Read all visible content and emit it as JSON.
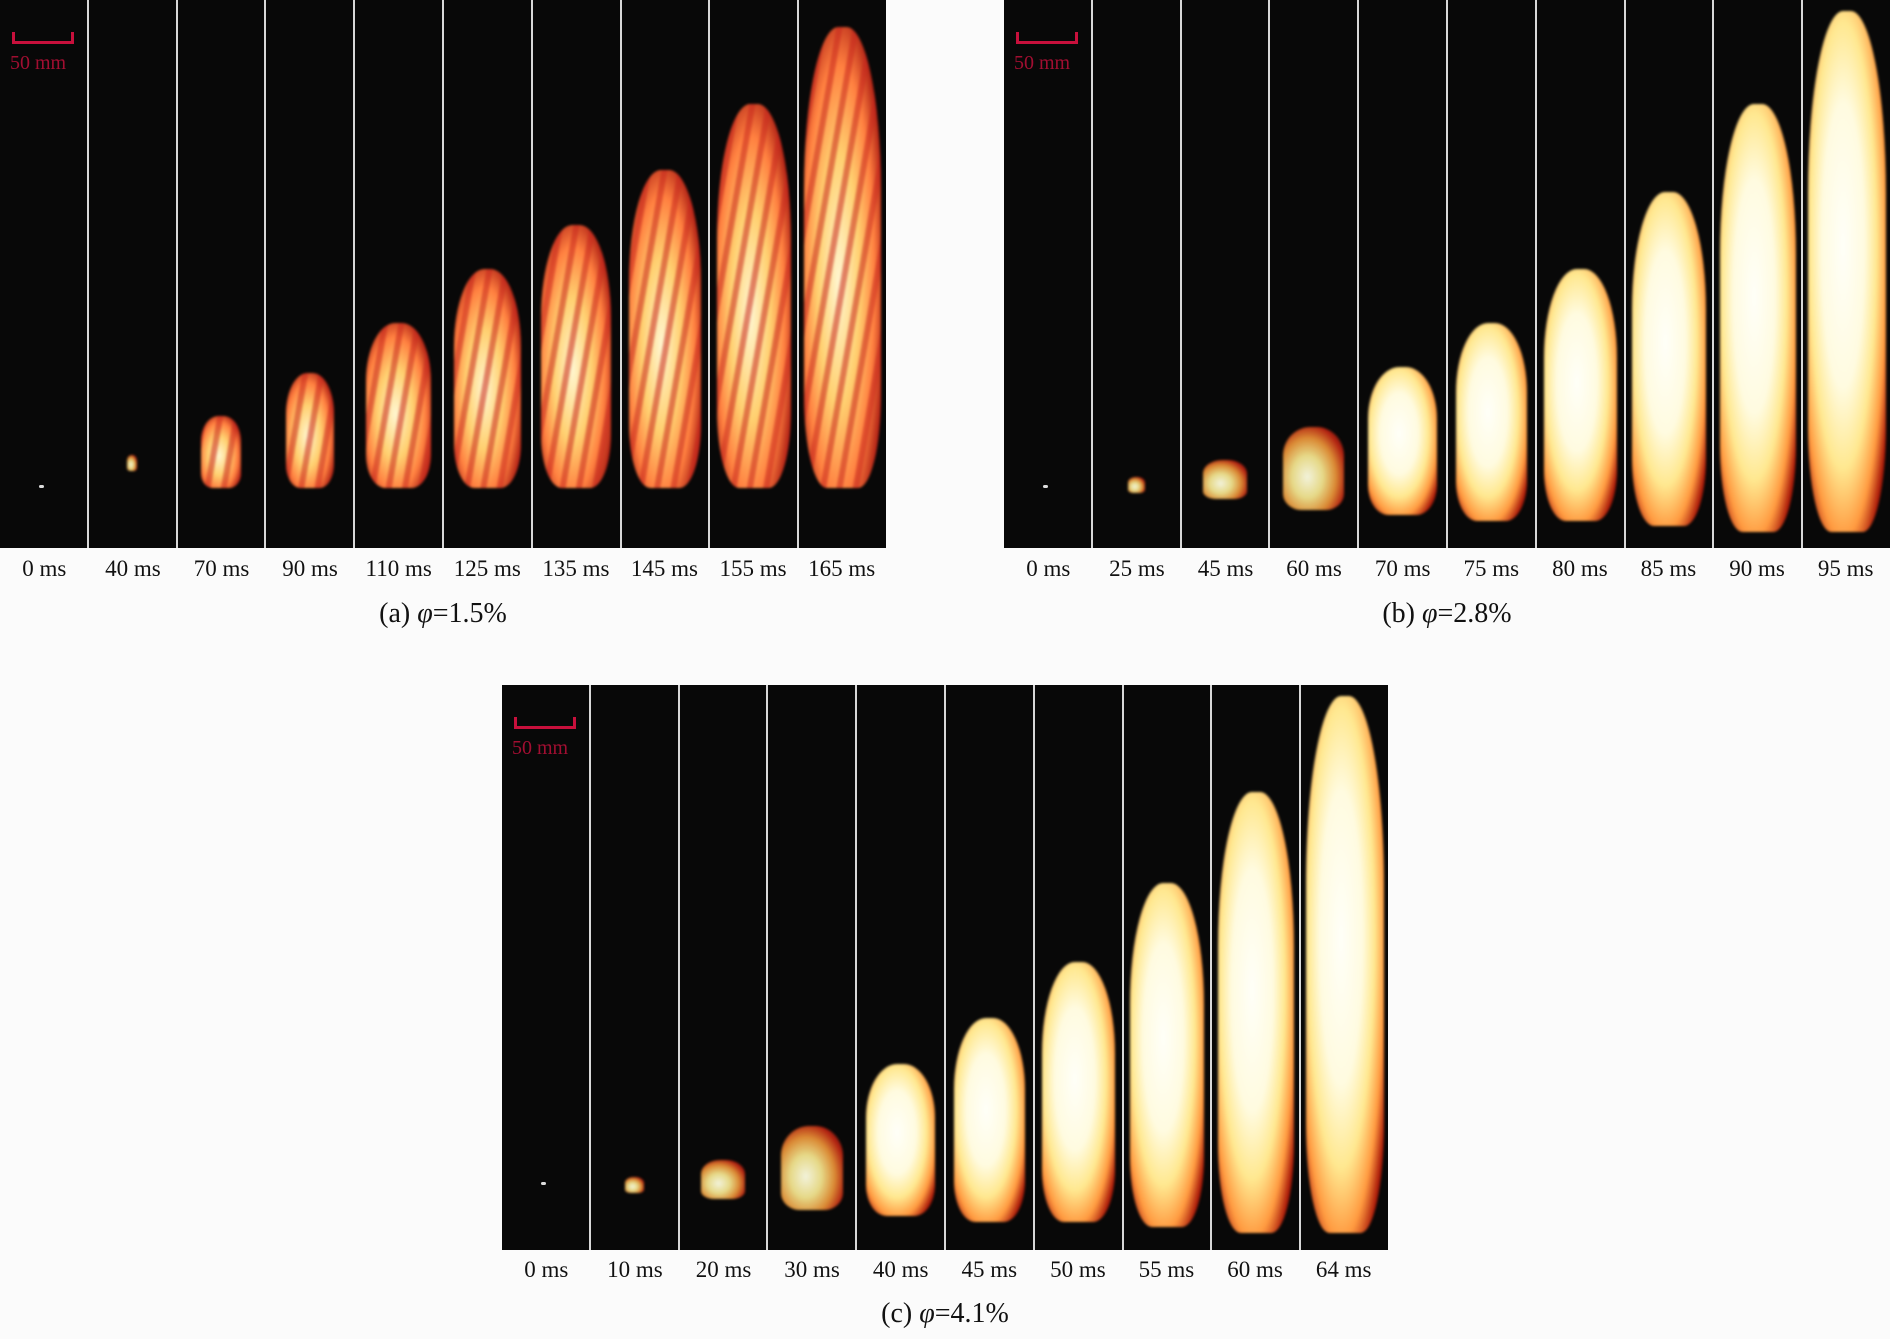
{
  "figure": {
    "panels": [
      {
        "id": "a",
        "caption_prefix": "(a) ",
        "caption_symbol": "φ",
        "caption_value": "=1.5%",
        "scale_bar_label": "50 mm",
        "frame_labels": [
          "0 ms",
          "40 ms",
          "70 ms",
          "90 ms",
          "110 ms",
          "125 ms",
          "135 ms",
          "145 ms",
          "155 ms",
          "165 ms"
        ]
      },
      {
        "id": "b",
        "caption_prefix": "(b) ",
        "caption_symbol": "φ",
        "caption_value": "=2.8%",
        "scale_bar_label": "50 mm",
        "frame_labels": [
          "0 ms",
          "25 ms",
          "45 ms",
          "60 ms",
          "70 ms",
          "75 ms",
          "80 ms",
          "85 ms",
          "90 ms",
          "95 ms"
        ]
      },
      {
        "id": "c",
        "caption_prefix": "(c) ",
        "caption_symbol": "φ",
        "caption_value": "=4.1%",
        "scale_bar_label": "50 mm",
        "frame_labels": [
          "0 ms",
          "10 ms",
          "20 ms",
          "30 ms",
          "40 ms",
          "45 ms",
          "50 ms",
          "55 ms",
          "60 ms",
          "64 ms"
        ]
      }
    ],
    "colors": {
      "background": "#080808",
      "scale_bar": "#c8103c",
      "flame_core": "#fffbe0",
      "flame_edge": "#dc2814"
    }
  }
}
